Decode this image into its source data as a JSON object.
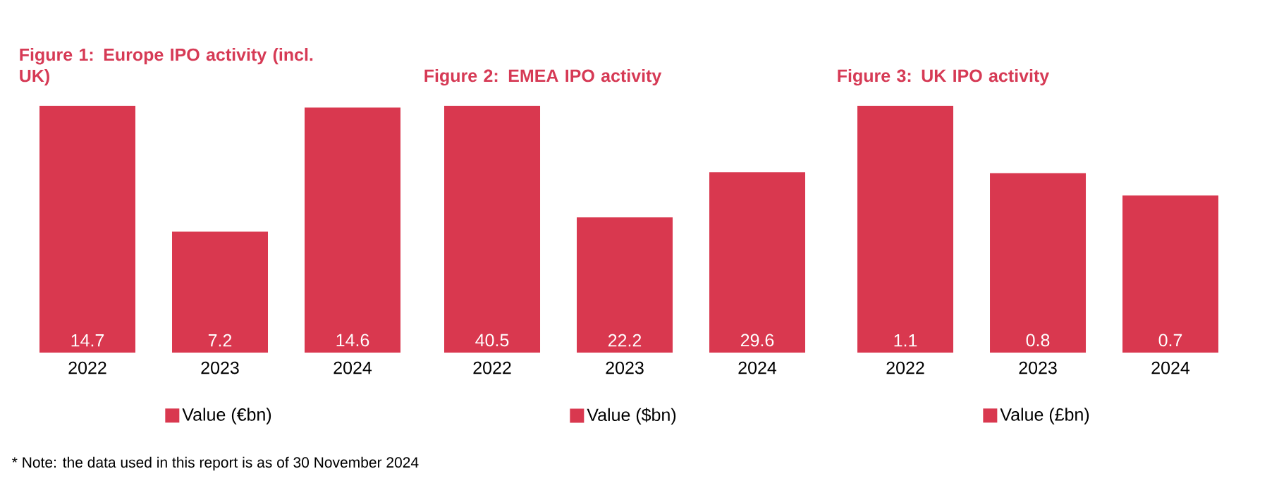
{
  "chart_data": [
    {
      "type": "bar",
      "title": "Figure 1: Europe IPO activity (incl. UK)",
      "categories": [
        "2022",
        "2023",
        "2024"
      ],
      "series": [
        {
          "name": "Value (€bn)",
          "color": "#d9384f",
          "values": [
            14.7,
            7.2,
            14.6
          ]
        }
      ],
      "data_labels": true,
      "legend": "bottom",
      "annotations": [
        "* Note: the data used in this report is as of 30 November 2024"
      ]
    },
    {
      "type": "bar",
      "title": "Figure 2: EMEA IPO activity",
      "categories": [
        "2022",
        "2023",
        "2024"
      ],
      "series": [
        {
          "name": "Value ($bn)",
          "color": "#d9384f",
          "values": [
            40.5,
            22.2,
            29.6
          ]
        }
      ],
      "data_labels": true,
      "legend": "bottom"
    },
    {
      "type": "bar",
      "title": "Figure 3: UK IPO activity",
      "categories": [
        "2022",
        "2023",
        "2024"
      ],
      "series": [
        {
          "name": "Value (£bn)",
          "color": "#d9384f",
          "values": [
            1.1,
            0.8,
            0.7
          ]
        }
      ],
      "data_labels": true,
      "legend": "bottom"
    }
  ]
}
